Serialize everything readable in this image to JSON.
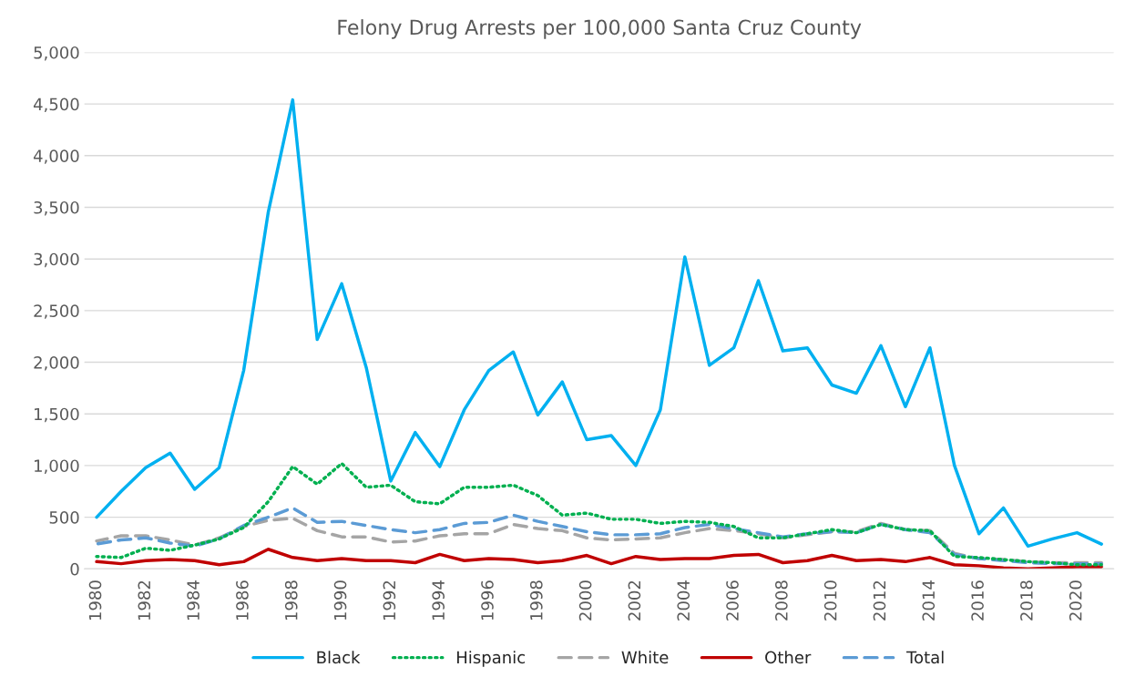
{
  "chart_data": {
    "type": "line",
    "title": "Felony Drug Arrests per 100,000 Santa Cruz County",
    "categories": [
      "1980",
      null,
      "1982",
      null,
      "1984",
      null,
      "1986",
      null,
      "1988",
      null,
      "1990",
      null,
      "1992",
      null,
      "1994",
      null,
      "1996",
      null,
      "1998",
      null,
      "2000",
      null,
      "2002",
      null,
      "2004",
      null,
      "2006",
      null,
      "2008",
      null,
      "2010",
      null,
      "2012",
      null,
      "2014",
      null,
      "2016",
      null,
      "2018",
      null,
      "2020",
      null
    ],
    "series": [
      {
        "name": "Black",
        "color": "#00b0f0",
        "line_style": "solid",
        "values": [
          500,
          750,
          980,
          1120,
          770,
          980,
          1920,
          3450,
          4540,
          2220,
          2760,
          1950,
          850,
          1320,
          990,
          1540,
          1920,
          2100,
          1490,
          1810,
          1250,
          1290,
          1000,
          1540,
          3020,
          1970,
          2140,
          2790,
          2110,
          2140,
          1780,
          1700,
          2160,
          1570,
          2140,
          1000,
          340,
          590,
          220,
          290,
          350,
          240
        ]
      },
      {
        "name": "Hispanic",
        "color": "#00b050",
        "line_style": "dotted",
        "values": [
          120,
          110,
          200,
          180,
          230,
          290,
          400,
          650,
          990,
          820,
          1020,
          790,
          810,
          650,
          630,
          790,
          790,
          810,
          710,
          520,
          540,
          480,
          480,
          440,
          460,
          450,
          410,
          300,
          300,
          340,
          380,
          350,
          430,
          380,
          370,
          120,
          110,
          90,
          70,
          60,
          40,
          40
        ]
      },
      {
        "name": "White",
        "color": "#a5a5a5",
        "line_style": "dashed",
        "values": [
          270,
          320,
          320,
          280,
          230,
          300,
          410,
          470,
          490,
          370,
          310,
          310,
          260,
          270,
          320,
          340,
          340,
          430,
          390,
          370,
          300,
          280,
          290,
          300,
          350,
          390,
          370,
          340,
          300,
          330,
          360,
          360,
          440,
          380,
          370,
          150,
          100,
          90,
          70,
          60,
          60,
          60
        ]
      },
      {
        "name": "Other",
        "color": "#c00000",
        "line_style": "solid",
        "values": [
          70,
          50,
          80,
          90,
          80,
          40,
          70,
          190,
          110,
          80,
          100,
          80,
          80,
          60,
          140,
          80,
          100,
          90,
          60,
          80,
          130,
          50,
          120,
          90,
          100,
          100,
          130,
          140,
          60,
          80,
          130,
          80,
          90,
          70,
          110,
          40,
          30,
          10,
          0,
          10,
          20,
          20
        ]
      },
      {
        "name": "Total",
        "color": "#5b9bd5",
        "line_style": "dashed",
        "values": [
          240,
          280,
          300,
          250,
          220,
          290,
          420,
          500,
          590,
          450,
          460,
          420,
          380,
          350,
          380,
          440,
          450,
          520,
          460,
          410,
          360,
          330,
          330,
          340,
          400,
          430,
          390,
          350,
          310,
          340,
          360,
          350,
          430,
          380,
          350,
          140,
          100,
          80,
          60,
          50,
          50,
          50
        ]
      }
    ],
    "ylim": [
      0,
      5000
    ],
    "yticks": [
      {
        "value": 0,
        "label": "0"
      },
      {
        "value": 500,
        "label": "500"
      },
      {
        "value": 1000,
        "label": "1,000"
      },
      {
        "value": 1500,
        "label": "1,500"
      },
      {
        "value": 2000,
        "label": "2,000"
      },
      {
        "value": 2500,
        "label": "2,500"
      },
      {
        "value": 3000,
        "label": "3,000"
      },
      {
        "value": 3500,
        "label": "3,500"
      },
      {
        "value": 4000,
        "label": "4,000"
      },
      {
        "value": 4500,
        "label": "4,500"
      },
      {
        "value": 5000,
        "label": "5,000"
      }
    ],
    "grid": "y",
    "legend": "bottom"
  }
}
